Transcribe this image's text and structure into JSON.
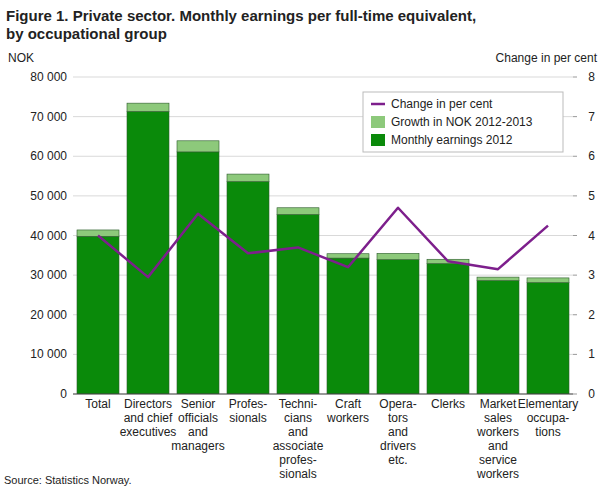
{
  "chart_data": {
    "type": "bar",
    "title": "Figure 1. Private sector. Monthly earnings per full-time equivalent,\nby occupational group",
    "y_label": "NOK",
    "y2_label": "Change in per cent",
    "source": "Source: Statistics Norway.",
    "categories": [
      "Total",
      "Directors\nand chief\nexecutives",
      "Senior\nofficials\nand\nmanagers",
      "Profes-\nsionals",
      "Techni-\ncians\nand\nassociate\nprofes-\nsionals",
      "Craft\nworkers",
      "Opera-\ntors\nand\ndrivers\netc.",
      "Clerks",
      "Market\nsales\nworkers\nand\nservice\nworkers",
      "Elementary\noccupa-\ntions"
    ],
    "stacked": true,
    "grid": true,
    "legend": "top-right",
    "series": [
      {
        "name": "Monthly earnings 2012",
        "type": "bar",
        "color": "#0a8a0a",
        "values": [
          39800,
          71300,
          61100,
          53600,
          45300,
          34300,
          33900,
          32900,
          28600,
          28100
        ]
      },
      {
        "name": "Growth in NOK 2012-2013",
        "type": "bar",
        "color": "#8dc97b",
        "values": [
          1600,
          2100,
          2800,
          1900,
          1700,
          1100,
          1600,
          1100,
          900,
          1200
        ]
      },
      {
        "name": "Change in per cent",
        "type": "line",
        "axis": "y2",
        "color": "#7d1f8c",
        "values": [
          4.0,
          2.95,
          4.55,
          3.55,
          3.7,
          3.2,
          4.7,
          3.35,
          3.15,
          4.25
        ]
      }
    ],
    "ylim": [
      0,
      80000
    ],
    "yticks": [
      0,
      {
        "value": 10000,
        "label": "10 000"
      },
      {
        "value": 20000,
        "label": "20 000"
      },
      {
        "value": 30000,
        "label": "30 000"
      },
      {
        "value": 40000,
        "label": "40 000"
      },
      {
        "value": 50000,
        "label": "50 000"
      },
      {
        "value": 60000,
        "label": "60 000"
      },
      {
        "value": 70000,
        "label": "70 000"
      },
      {
        "value": 80000,
        "label": "80 000"
      }
    ],
    "y2lim": [
      0,
      8
    ],
    "y2ticks": [
      0,
      1,
      2,
      3,
      4,
      5,
      6,
      7,
      8
    ]
  }
}
